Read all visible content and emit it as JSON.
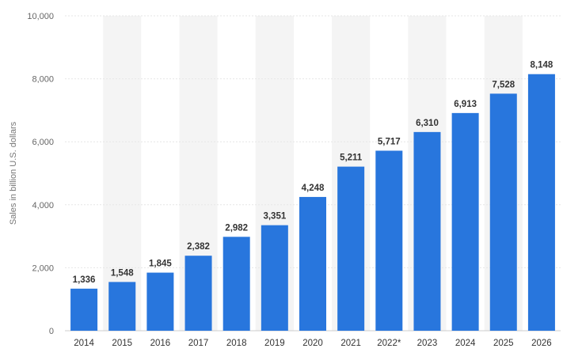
{
  "chart_data": {
    "type": "bar",
    "title": "",
    "xlabel": "",
    "ylabel": "Sales in billion U.S. dollars",
    "categories": [
      "2014",
      "2015",
      "2016",
      "2017",
      "2018",
      "2019",
      "2020",
      "2021",
      "2022*",
      "2023",
      "2024",
      "2025",
      "2026"
    ],
    "values": [
      1336,
      1548,
      1845,
      2382,
      2982,
      3351,
      4248,
      5211,
      5717,
      6310,
      6913,
      7528,
      8148
    ],
    "value_labels": [
      "1,336",
      "1,548",
      "1,845",
      "2,382",
      "2,982",
      "3,351",
      "4,248",
      "5,211",
      "5,717",
      "6,310",
      "6,913",
      "7,528",
      "8,148"
    ],
    "ylim": [
      0,
      10000
    ],
    "yticks": [
      0,
      2000,
      4000,
      6000,
      8000,
      10000
    ],
    "ytick_labels": [
      "0",
      "2,000",
      "4,000",
      "6,000",
      "8,000",
      "10,000"
    ],
    "grid": true,
    "alternating_column_bands": true,
    "colors": {
      "bar": "#2876dd",
      "band": "#f4f4f4",
      "grid": "#e6e6e6",
      "axis": "#cccccc"
    }
  }
}
